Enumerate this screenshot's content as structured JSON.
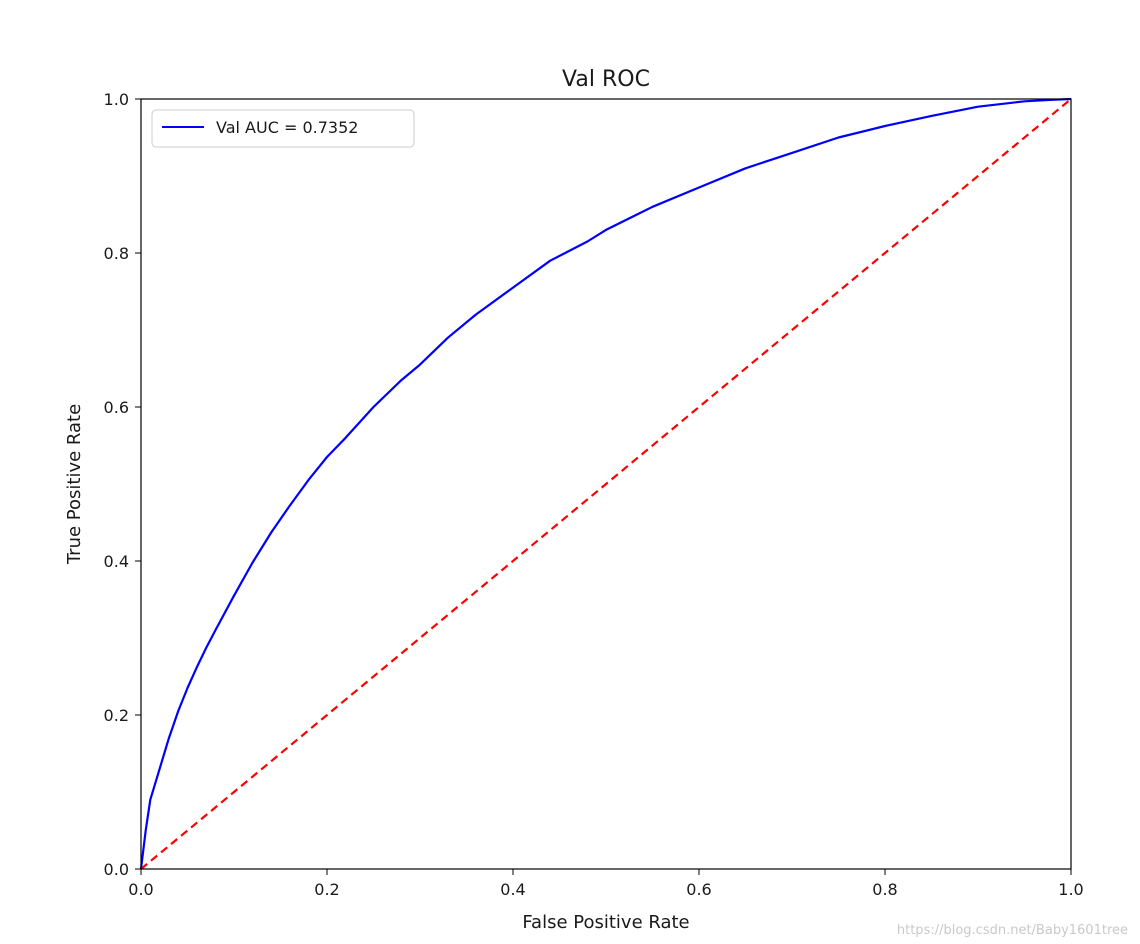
{
  "chart_data": {
    "type": "line",
    "title": "Val ROC",
    "xlabel": "False Positive Rate",
    "ylabel": "True Positive Rate",
    "xlim": [
      0.0,
      1.0
    ],
    "ylim": [
      0.0,
      1.0
    ],
    "xticks": [
      "0.0",
      "0.2",
      "0.4",
      "0.6",
      "0.8",
      "1.0"
    ],
    "yticks": [
      "0.0",
      "0.2",
      "0.4",
      "0.6",
      "0.8",
      "1.0"
    ],
    "grid": false,
    "legend": {
      "placement": "upper-left",
      "entries": [
        {
          "label": "Val AUC = 0.7352",
          "color": "#0000ff",
          "style": "solid"
        }
      ]
    },
    "series": [
      {
        "name": "Val AUC = 0.7352",
        "color": "#0000ff",
        "style": "solid",
        "x": [
          0.0,
          0.005,
          0.01,
          0.02,
          0.03,
          0.04,
          0.05,
          0.06,
          0.07,
          0.08,
          0.1,
          0.12,
          0.14,
          0.16,
          0.18,
          0.2,
          0.22,
          0.25,
          0.28,
          0.3,
          0.33,
          0.36,
          0.4,
          0.44,
          0.48,
          0.5,
          0.55,
          0.6,
          0.65,
          0.7,
          0.75,
          0.8,
          0.85,
          0.9,
          0.95,
          0.98,
          1.0
        ],
        "y": [
          0.0,
          0.05,
          0.09,
          0.13,
          0.17,
          0.205,
          0.235,
          0.262,
          0.287,
          0.31,
          0.355,
          0.398,
          0.437,
          0.472,
          0.505,
          0.535,
          0.56,
          0.6,
          0.635,
          0.655,
          0.69,
          0.72,
          0.755,
          0.79,
          0.815,
          0.83,
          0.86,
          0.885,
          0.91,
          0.93,
          0.95,
          0.965,
          0.978,
          0.99,
          0.997,
          0.999,
          1.0
        ]
      },
      {
        "name": "",
        "color": "#ff0000",
        "style": "dashed",
        "x": [
          0.0,
          1.0
        ],
        "y": [
          0.0,
          1.0
        ]
      }
    ]
  },
  "watermark": "https://blog.csdn.net/Baby1601tree"
}
